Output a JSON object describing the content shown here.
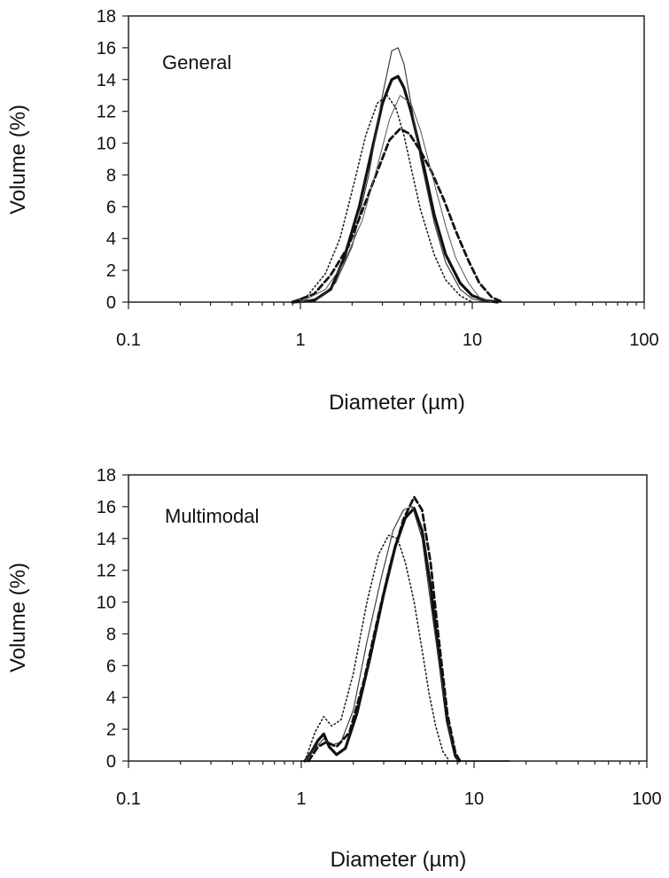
{
  "chart_data": [
    {
      "type": "line",
      "title": "General",
      "xlabel": "Diameter (µm)",
      "ylabel": "Volume (%)",
      "xscale": "log",
      "xlim": [
        0.1,
        100
      ],
      "ylim": [
        0,
        18
      ],
      "xticks": [
        "0.1",
        "1",
        "10",
        "100"
      ],
      "yticks": [
        "0",
        "2",
        "4",
        "6",
        "8",
        "10",
        "12",
        "14",
        "16",
        "18"
      ],
      "grid": false,
      "legend": "none",
      "series": [
        {
          "style": "thick-solid",
          "x": [
            0.9,
            1.2,
            1.5,
            1.8,
            2.2,
            2.6,
            3.0,
            3.4,
            3.7,
            4.0,
            4.4,
            5.0,
            6.0,
            7.0,
            8.5,
            10,
            12,
            14
          ],
          "y": [
            0,
            0.1,
            0.8,
            2.8,
            6.0,
            9.5,
            12.5,
            14.0,
            14.2,
            13.5,
            12.0,
            9.5,
            5.5,
            3.0,
            1.2,
            0.4,
            0.1,
            0
          ]
        },
        {
          "style": "thin-solid",
          "x": [
            1.0,
            1.3,
            1.6,
            2.0,
            2.5,
            3.0,
            3.4,
            3.7,
            4.0,
            4.4,
            5.0,
            6.0,
            7.0,
            8.5,
            10,
            12
          ],
          "y": [
            0,
            0.3,
            1.2,
            3.5,
            8.0,
            13.0,
            15.8,
            16.0,
            15.0,
            12.5,
            9.0,
            5.0,
            2.5,
            0.8,
            0.2,
            0
          ]
        },
        {
          "style": "dotted",
          "x": [
            0.9,
            1.1,
            1.4,
            1.7,
            2.0,
            2.4,
            2.8,
            3.2,
            3.6,
            4.0,
            4.5,
            5.0,
            6.0,
            7.0,
            8.5,
            10
          ],
          "y": [
            0,
            0.4,
            1.8,
            4.0,
            7.0,
            10.5,
            12.5,
            13.0,
            12.2,
            10.5,
            8.0,
            5.8,
            3.0,
            1.4,
            0.4,
            0
          ]
        },
        {
          "style": "dashed",
          "x": [
            0.9,
            1.2,
            1.5,
            1.9,
            2.3,
            2.8,
            3.3,
            3.8,
            4.3,
            5.0,
            5.8,
            6.8,
            8.0,
            9.5,
            11,
            13,
            15
          ],
          "y": [
            0,
            0.5,
            1.7,
            3.5,
            5.8,
            8.2,
            10.2,
            10.9,
            10.6,
            9.5,
            8.2,
            6.5,
            4.5,
            2.6,
            1.2,
            0.3,
            0
          ]
        },
        {
          "style": "thin-solid-2",
          "x": [
            1.0,
            1.4,
            1.8,
            2.3,
            2.8,
            3.3,
            3.8,
            4.4,
            5.0,
            6.0,
            7.0,
            8.0,
            9.5,
            11,
            13
          ],
          "y": [
            0,
            0.8,
            2.5,
            5.2,
            8.5,
            11.5,
            13.0,
            12.5,
            10.8,
            7.5,
            4.8,
            2.8,
            1.2,
            0.3,
            0
          ]
        }
      ]
    },
    {
      "type": "line",
      "title": "Multimodal",
      "xlabel": "Diameter (µm)",
      "ylabel": "Volume (%)",
      "xscale": "log",
      "xlim": [
        0.1,
        100
      ],
      "ylim": [
        0,
        18
      ],
      "xticks": [
        "0.1",
        "1",
        "10",
        "100"
      ],
      "yticks": [
        "0",
        "2",
        "4",
        "6",
        "8",
        "10",
        "12",
        "14",
        "16",
        "18"
      ],
      "grid": false,
      "legend": "none",
      "series": [
        {
          "style": "thick-solid",
          "x": [
            1.05,
            1.15,
            1.25,
            1.35,
            1.45,
            1.6,
            1.8,
            2.1,
            2.5,
            3.0,
            3.5,
            4.0,
            4.5,
            5.0,
            5.6,
            6.2,
            7.0,
            7.8,
            8.2
          ],
          "y": [
            0,
            0.6,
            1.3,
            1.7,
            0.9,
            0.4,
            0.8,
            3.0,
            6.5,
            10.5,
            13.5,
            15.3,
            15.9,
            14.5,
            11.0,
            7.0,
            2.5,
            0.3,
            0
          ]
        },
        {
          "style": "thin-solid",
          "x": [
            1.05,
            1.2,
            1.35,
            1.5,
            1.7,
            2.0,
            2.4,
            2.9,
            3.4,
            3.9,
            4.4,
            5.0,
            5.6,
            6.3,
            7.2,
            8.0
          ],
          "y": [
            0,
            0.8,
            1.4,
            1.0,
            1.2,
            3.2,
            7.5,
            11.5,
            14.5,
            15.8,
            16.0,
            14.0,
            10.0,
            6.0,
            1.8,
            0
          ]
        },
        {
          "style": "dotted",
          "x": [
            1.05,
            1.2,
            1.35,
            1.5,
            1.7,
            2.0,
            2.4,
            2.8,
            3.2,
            3.6,
            4.0,
            4.5,
            5.0,
            5.5,
            6.0,
            6.6,
            7.2
          ],
          "y": [
            0,
            1.8,
            2.8,
            2.2,
            2.6,
            5.5,
            10.0,
            13.0,
            14.2,
            14.0,
            12.5,
            10.0,
            7.0,
            4.2,
            2.2,
            0.6,
            0
          ]
        },
        {
          "style": "dashed",
          "x": [
            1.1,
            1.25,
            1.4,
            1.6,
            1.9,
            2.3,
            2.8,
            3.3,
            3.9,
            4.5,
            5.0,
            5.6,
            6.2,
            7.0,
            7.8,
            8.3
          ],
          "y": [
            0,
            0.9,
            1.2,
            0.9,
            1.8,
            5.0,
            9.2,
            12.5,
            15.2,
            16.6,
            15.8,
            12.5,
            8.0,
            3.0,
            0.5,
            0
          ]
        },
        {
          "style": "baseline",
          "x": [
            1.0,
            16
          ],
          "y": [
            0,
            0
          ]
        }
      ]
    }
  ]
}
